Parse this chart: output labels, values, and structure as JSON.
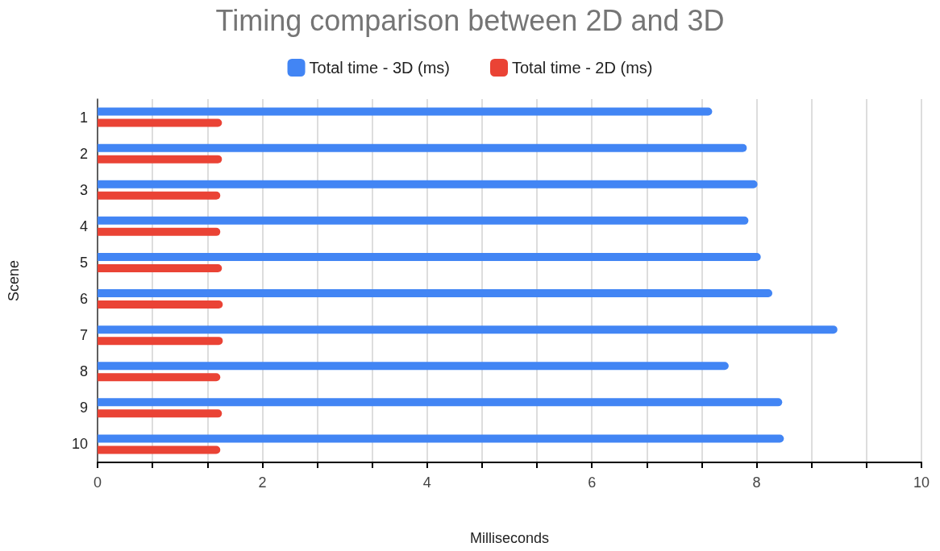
{
  "chart_data": {
    "type": "bar",
    "orientation": "horizontal",
    "title": "Timing comparison between 2D and 3D",
    "xlabel": "Milliseconds",
    "ylabel": "Scene",
    "categories": [
      "1",
      "2",
      "3",
      "4",
      "5",
      "6",
      "7",
      "8",
      "9",
      "10"
    ],
    "series": [
      {
        "name": "Total time - 3D (ms)",
        "color": "#4285f4",
        "values": [
          7.46,
          7.88,
          8.01,
          7.9,
          8.05,
          8.19,
          8.98,
          7.66,
          8.31,
          8.33
        ]
      },
      {
        "name": "Total time - 2D (ms)",
        "color": "#ea4335",
        "values": [
          1.51,
          1.51,
          1.49,
          1.49,
          1.51,
          1.52,
          1.52,
          1.49,
          1.51,
          1.49
        ]
      }
    ],
    "xlim": [
      0,
      10
    ],
    "xticks": [
      0,
      {
        "value": 0.6667,
        "label": null
      },
      {
        "value": 1.3333,
        "label": null
      },
      2,
      {
        "value": 2.6667,
        "label": null
      },
      {
        "value": 3.3333,
        "label": null
      },
      4,
      {
        "value": 4.6667,
        "label": null
      },
      {
        "value": 5.3333,
        "label": null
      },
      6,
      {
        "value": 6.6667,
        "label": null
      },
      {
        "value": 7.3333,
        "label": null
      },
      8,
      {
        "value": 8.6667,
        "label": null
      },
      {
        "value": 9.3333,
        "label": null
      },
      10
    ],
    "grid": "x",
    "legend": "top"
  }
}
